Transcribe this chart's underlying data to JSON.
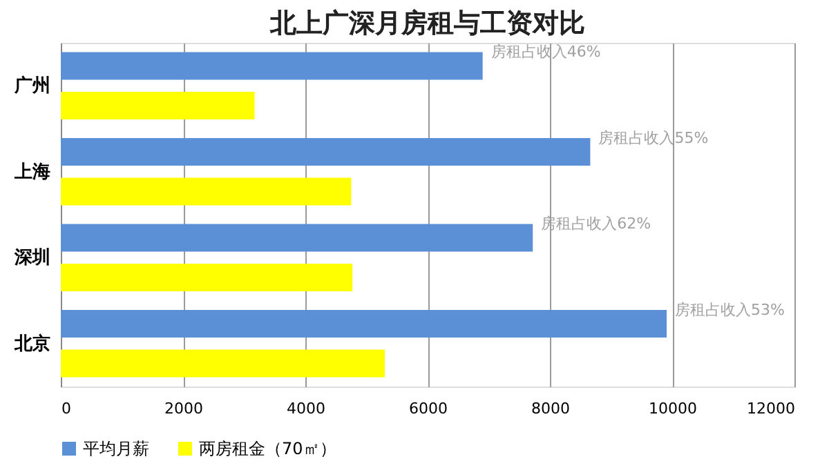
{
  "chart_data": {
    "type": "bar",
    "orientation": "horizontal",
    "title": "北上广深月房租与工资对比",
    "categories": [
      "广州",
      "上海",
      "深圳",
      "北京"
    ],
    "series": [
      {
        "name": "平均月薪",
        "color": "#5b8fd6",
        "values": [
          6900,
          8660,
          7720,
          9910
        ]
      },
      {
        "name": "两房租金（70㎡）",
        "color": "#ffff00",
        "values": [
          3170,
          4750,
          4770,
          5300
        ]
      }
    ],
    "xlim": [
      0,
      12000
    ],
    "xticks": [
      0,
      2000,
      4000,
      6000,
      8000,
      10000,
      12000
    ],
    "grid": "x",
    "legend": "bottom",
    "annotations": [
      {
        "text": "房租占收入46%",
        "x": 6900,
        "y": "广州"
      },
      {
        "text": "房租占收入55%",
        "x": 8660,
        "y": "上海"
      },
      {
        "text": "房租占收入62%",
        "x": 7720,
        "y": "深圳"
      },
      {
        "text": "房租占收入53%",
        "x": 9910,
        "y": "北京"
      }
    ]
  }
}
